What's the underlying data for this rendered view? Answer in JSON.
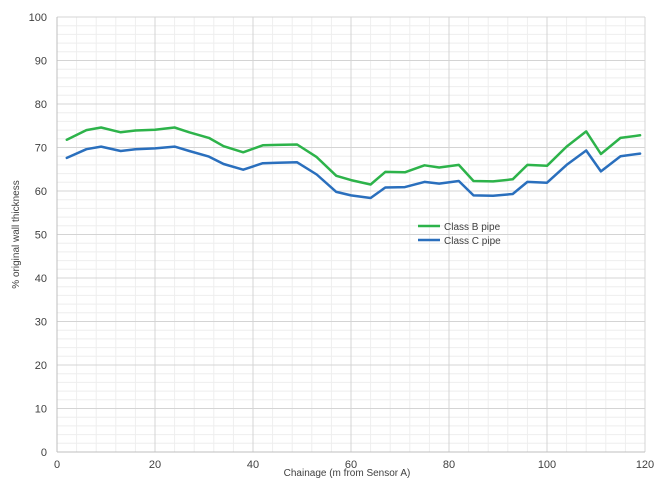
{
  "chart_data": {
    "type": "line",
    "title": "",
    "xlabel": "Chainage (m from Sensor A)",
    "ylabel": "% original wall thickness",
    "xlim": [
      0,
      120
    ],
    "ylim": [
      0,
      100
    ],
    "x_ticks": [
      0,
      20,
      40,
      60,
      80,
      100,
      120
    ],
    "y_ticks": [
      0,
      10,
      20,
      30,
      40,
      50,
      60,
      70,
      80,
      90,
      100
    ],
    "grid": true,
    "legend_position": "center-right",
    "x": [
      2,
      6,
      9,
      13,
      16,
      20,
      24,
      27,
      31,
      34,
      38,
      42,
      45,
      49,
      53,
      57,
      60,
      64,
      67,
      71,
      75,
      78,
      82,
      85,
      89,
      93,
      96,
      100,
      104,
      108,
      111,
      115,
      119
    ],
    "series": [
      {
        "name": "Class B pipe",
        "color": "#2db34a",
        "values": [
          71.8,
          74.0,
          74.6,
          73.5,
          73.9,
          74.1,
          74.6,
          73.5,
          72.2,
          70.3,
          68.9,
          70.5,
          70.6,
          70.7,
          67.8,
          63.5,
          62.5,
          61.5,
          64.4,
          64.3,
          65.9,
          65.4,
          66.0,
          62.3,
          62.2,
          62.7,
          66.0,
          65.8,
          70.2,
          73.7,
          68.5,
          72.2,
          72.8
        ]
      },
      {
        "name": "Class C pipe",
        "color": "#2a6fbd",
        "values": [
          67.6,
          69.6,
          70.2,
          69.2,
          69.6,
          69.8,
          70.2,
          69.2,
          67.9,
          66.2,
          64.9,
          66.4,
          66.5,
          66.6,
          63.8,
          59.8,
          59.0,
          58.4,
          60.8,
          60.9,
          62.1,
          61.7,
          62.3,
          59.0,
          58.9,
          59.3,
          62.1,
          61.9,
          66.0,
          69.3,
          64.5,
          68.0,
          68.6
        ]
      }
    ]
  }
}
